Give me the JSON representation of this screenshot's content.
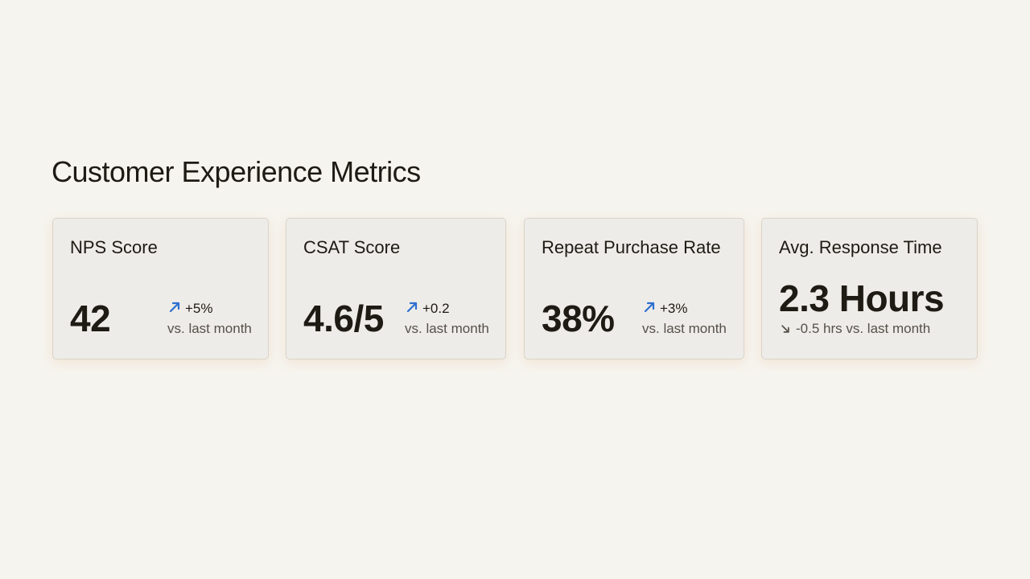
{
  "title": "Customer Experience Metrics",
  "colors": {
    "background": "#f6f4ef",
    "card": "#eeece8",
    "up_arrow": "#2d6fd0",
    "down_arrow": "#55504a"
  },
  "cards": [
    {
      "label": "NPS Score",
      "value": "42",
      "delta": "+5%",
      "comparison": "vs. last month",
      "trend": "up",
      "icon": "arrow-up-right-icon"
    },
    {
      "label": "CSAT Score",
      "value": "4.6/5",
      "delta": "+0.2",
      "comparison": "vs. last month",
      "trend": "up",
      "icon": "arrow-up-right-icon"
    },
    {
      "label": "Repeat Purchase Rate",
      "value": "38%",
      "delta": "+3%",
      "comparison": "vs. last month",
      "trend": "up",
      "icon": "arrow-up-right-icon"
    },
    {
      "label": "Avg. Response Time",
      "value": "2.3 Hours",
      "delta_text": "-0.5 hrs vs. last month",
      "trend": "down",
      "icon": "arrow-down-right-icon"
    }
  ]
}
